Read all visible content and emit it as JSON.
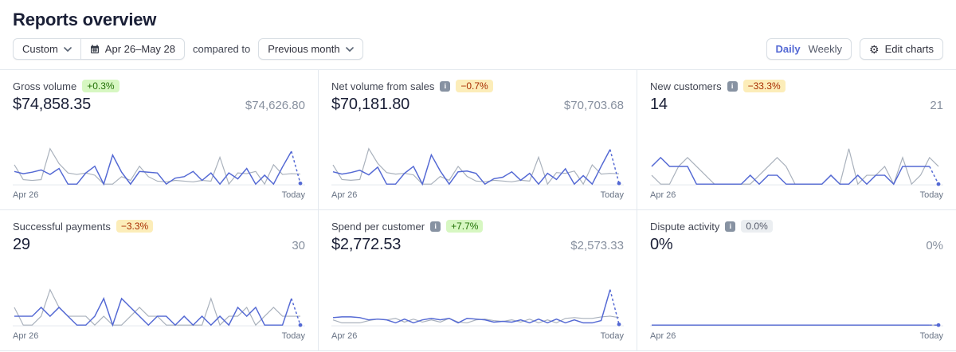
{
  "page": {
    "title": "Reports overview"
  },
  "toolbar": {
    "range_type": "Custom",
    "date_range": "Apr 26–May 28",
    "compared_to_label": "compared to",
    "comparison": "Previous month",
    "granularity_daily": "Daily",
    "granularity_weekly": "Weekly",
    "granularity_active": "Daily",
    "edit_charts_label": "Edit charts"
  },
  "axis": {
    "start": "Apr 26",
    "end": "Today"
  },
  "colors": {
    "accent": "#5469d4",
    "prev_line": "#a9b1bc",
    "baseline": "#e3e8ee",
    "success_bg": "#d7f7c2",
    "success_text": "#217005",
    "warning_bg": "#fcedb9",
    "warning_text": "#a82c00",
    "neutral_bg": "#ebeef1",
    "neutral_text": "#545969"
  },
  "cards": [
    {
      "title": "Gross volume",
      "has_info": false,
      "badge": {
        "text": "+0.3%",
        "type": "success"
      },
      "value": "$74,858.35",
      "comparison": "$74,626.80",
      "chart_index": 0
    },
    {
      "title": "Net volume from sales",
      "has_info": true,
      "badge": {
        "text": "−0.7%",
        "type": "warning"
      },
      "value": "$70,181.80",
      "comparison": "$70,703.68",
      "chart_index": 1
    },
    {
      "title": "New customers",
      "has_info": true,
      "badge": {
        "text": "−33.3%",
        "type": "warning"
      },
      "value": "14",
      "comparison": "21",
      "chart_index": 2
    },
    {
      "title": "Successful payments",
      "has_info": false,
      "badge": {
        "text": "−3.3%",
        "type": "warning"
      },
      "value": "29",
      "comparison": "30",
      "chart_index": 3
    },
    {
      "title": "Spend per customer",
      "has_info": true,
      "badge": {
        "text": "+7.7%",
        "type": "success"
      },
      "value": "$2,772.53",
      "comparison": "$2,573.33",
      "chart_index": 4
    },
    {
      "title": "Dispute activity",
      "has_info": true,
      "badge": {
        "text": "0.0%",
        "type": "neutral"
      },
      "value": "0%",
      "comparison": "0%",
      "chart_index": 5
    }
  ],
  "chart_data": [
    {
      "type": "line",
      "title": "Gross volume",
      "x_start": "Apr 26",
      "x_end": "Today",
      "grid": false,
      "series": [
        {
          "name": "Apr 26–May 28",
          "values": [
            34,
            28,
            32,
            38,
            26,
            42,
            0,
            0,
            30,
            48,
            0,
            78,
            32,
            0,
            34,
            32,
            30,
            0,
            16,
            20,
            34,
            10,
            30,
            0,
            30,
            14,
            42,
            0,
            24,
            0,
            46,
            88,
            2
          ]
        },
        {
          "name": "Previous month",
          "values": [
            52,
            12,
            10,
            12,
            95,
            55,
            30,
            26,
            30,
            24,
            0,
            0,
            20,
            10,
            48,
            20,
            8,
            6,
            10,
            8,
            6,
            10,
            8,
            72,
            0,
            30,
            28,
            34,
            0,
            52,
            26,
            28,
            27
          ]
        }
      ]
    },
    {
      "type": "line",
      "title": "Net volume from sales",
      "x_start": "Apr 26",
      "x_end": "Today",
      "grid": false,
      "series": [
        {
          "name": "Apr 26–May 28",
          "values": [
            32,
            26,
            30,
            36,
            24,
            44,
            0,
            0,
            28,
            46,
            0,
            76,
            34,
            0,
            32,
            34,
            28,
            0,
            14,
            18,
            32,
            10,
            28,
            0,
            28,
            12,
            40,
            0,
            22,
            0,
            46,
            90,
            2
          ]
        },
        {
          "name": "Previous month",
          "values": [
            50,
            12,
            10,
            12,
            92,
            54,
            30,
            26,
            28,
            24,
            0,
            0,
            20,
            10,
            46,
            20,
            8,
            6,
            10,
            8,
            6,
            10,
            8,
            70,
            0,
            30,
            28,
            34,
            0,
            50,
            26,
            28,
            27
          ]
        }
      ]
    },
    {
      "type": "line",
      "title": "New customers",
      "x_start": "Apr 26",
      "x_end": "Today",
      "grid": false,
      "series": [
        {
          "name": "Apr 26–May 28",
          "values": [
            2,
            3,
            2,
            2,
            2,
            0,
            0,
            0,
            0,
            0,
            0,
            1,
            0,
            1,
            1,
            0,
            0,
            0,
            0,
            0,
            1,
            0,
            0,
            1,
            0,
            1,
            1,
            0,
            2,
            2,
            2,
            2,
            0
          ]
        },
        {
          "name": "Previous month",
          "values": [
            1,
            0,
            0,
            2,
            3,
            2,
            1,
            0,
            0,
            0,
            0,
            0,
            1,
            2,
            3,
            2,
            0,
            0,
            0,
            0,
            1,
            0,
            4,
            0,
            1,
            1,
            2,
            0,
            3,
            0,
            1,
            3,
            2
          ]
        }
      ]
    },
    {
      "type": "line",
      "title": "Successful payments",
      "x_start": "Apr 26",
      "x_end": "Today",
      "grid": false,
      "series": [
        {
          "name": "Apr 26–May 28",
          "values": [
            1,
            1,
            1,
            2,
            1,
            2,
            1,
            0,
            0,
            1,
            3,
            0,
            3,
            2,
            1,
            0,
            1,
            1,
            0,
            1,
            0,
            1,
            0,
            1,
            0,
            2,
            1,
            2,
            0,
            0,
            0,
            3,
            0
          ]
        },
        {
          "name": "Previous month",
          "values": [
            2,
            0,
            0,
            1,
            4,
            2,
            1,
            1,
            1,
            0,
            1,
            0,
            0,
            1,
            2,
            1,
            1,
            0,
            0,
            0,
            0,
            0,
            3,
            0,
            1,
            1,
            2,
            0,
            1,
            2,
            1,
            1,
            1
          ]
        }
      ]
    },
    {
      "type": "line",
      "title": "Spend per customer",
      "x_start": "Apr 26",
      "x_end": "Today",
      "grid": false,
      "series": [
        {
          "name": "Apr 26–May 28",
          "values": [
            20,
            22,
            22,
            20,
            14,
            16,
            14,
            6,
            16,
            6,
            14,
            18,
            14,
            18,
            6,
            18,
            16,
            14,
            8,
            10,
            8,
            14,
            6,
            16,
            6,
            16,
            6,
            14,
            6,
            6,
            12,
            95,
            2
          ]
        },
        {
          "name": "Previous month",
          "values": [
            14,
            6,
            6,
            6,
            12,
            16,
            14,
            18,
            8,
            16,
            8,
            14,
            8,
            18,
            8,
            6,
            14,
            16,
            12,
            10,
            14,
            8,
            16,
            6,
            14,
            6,
            18,
            20,
            18,
            18,
            22,
            24,
            20
          ]
        }
      ]
    },
    {
      "type": "line",
      "title": "Dispute activity",
      "x_start": "Apr 26",
      "x_end": "Today",
      "grid": false,
      "series": [
        {
          "name": "Apr 26–May 28",
          "values": [
            0,
            0,
            0,
            0,
            0,
            0,
            0,
            0,
            0,
            0,
            0,
            0,
            0,
            0,
            0,
            0,
            0,
            0,
            0,
            0,
            0,
            0,
            0,
            0,
            0,
            0,
            0,
            0,
            0,
            0,
            0,
            0,
            0
          ]
        },
        {
          "name": "Previous month",
          "values": [
            0,
            0,
            0,
            0,
            0,
            0,
            0,
            0,
            0,
            0,
            0,
            0,
            0,
            0,
            0,
            0,
            0,
            0,
            0,
            0,
            0,
            0,
            0,
            0,
            0,
            0,
            0,
            0,
            0,
            0,
            0,
            0,
            0
          ]
        }
      ]
    }
  ]
}
